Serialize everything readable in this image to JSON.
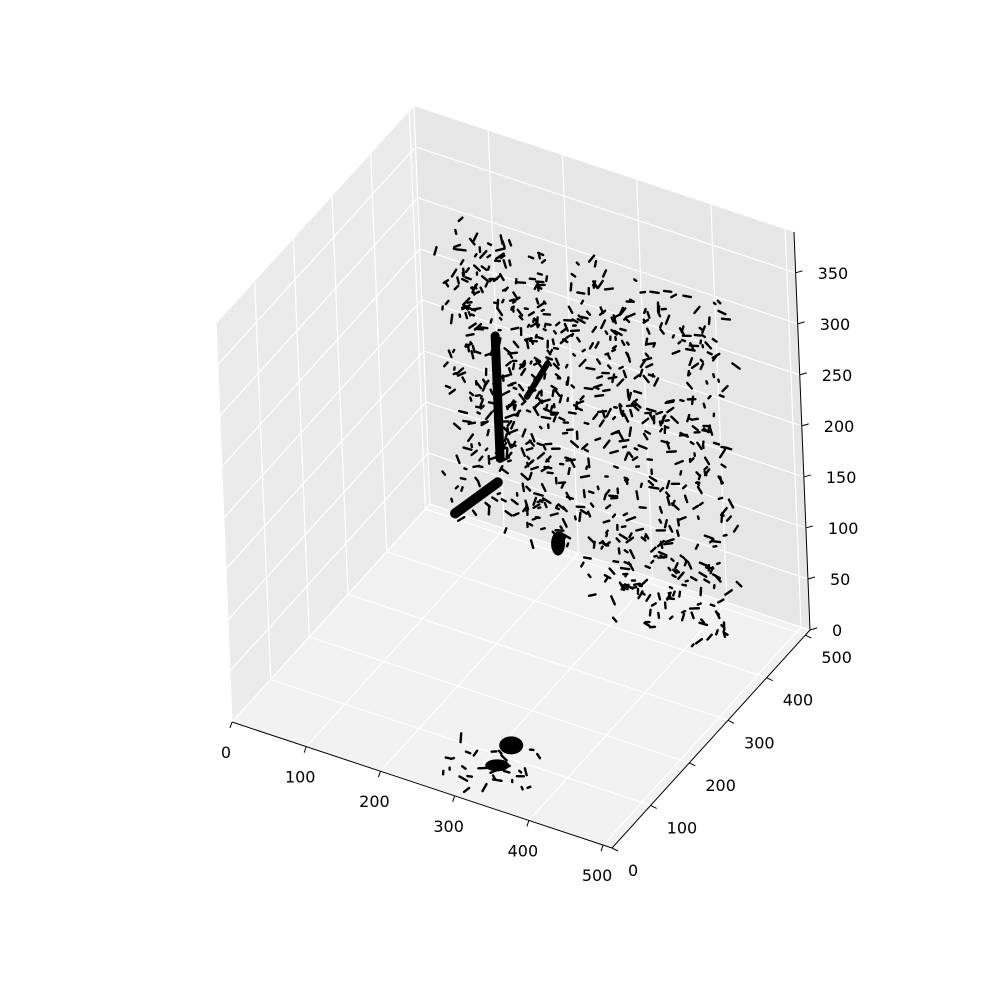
{
  "chart_data": {
    "type": "scatter",
    "projection": "3d",
    "title": "",
    "xlabel": "",
    "ylabel": "",
    "zlabel": "",
    "xlim": [
      0,
      512
    ],
    "ylim": [
      0,
      512
    ],
    "zlim": [
      0,
      390
    ],
    "x_ticks": [
      0,
      100,
      200,
      300,
      400,
      500
    ],
    "y_ticks": [
      0,
      100,
      200,
      300,
      400,
      500
    ],
    "z_ticks": [
      0,
      50,
      100,
      150,
      200,
      250,
      300,
      350
    ],
    "grid": true,
    "legend": "none",
    "marker_color": "#000000",
    "pane_colors": {
      "floor": "#f2f2f2",
      "left_wall": "#ebebeb",
      "back_wall": "#e6e6e6"
    },
    "grid_color": "#ffffff",
    "note": "",
    "series": [
      {
        "name": "",
        "clusters": [
          {
            "region": "left-lung",
            "x": [
              90,
              250
            ],
            "y": [
              380,
              470
            ],
            "z": [
              60,
              330
            ],
            "density": 420
          },
          {
            "region": "right-lung",
            "x": [
              260,
              450
            ],
            "y": [
              380,
              470
            ],
            "z": [
              10,
              330
            ],
            "density": 420
          },
          {
            "region": "lower-structure",
            "x": [
              280,
              400
            ],
            "y": [
              0,
              80
            ],
            "z": [
              0,
              40
            ],
            "density": 30
          }
        ]
      }
    ],
    "large_marks": [
      {
        "kind": "trunk",
        "x": 160,
        "y": 400,
        "z": [
          130,
          250
        ]
      },
      {
        "kind": "branch-left",
        "x": [
          90,
          150
        ],
        "y": 410,
        "z": [
          55,
          100
        ]
      },
      {
        "kind": "branch-right",
        "x": [
          200,
          230
        ],
        "y": 400,
        "z": [
          200,
          240
        ]
      },
      {
        "kind": "blob",
        "x": 240,
        "y": 390,
        "z": 70
      },
      {
        "kind": "blob-low",
        "x": 340,
        "y": 40,
        "z": 15
      }
    ]
  }
}
